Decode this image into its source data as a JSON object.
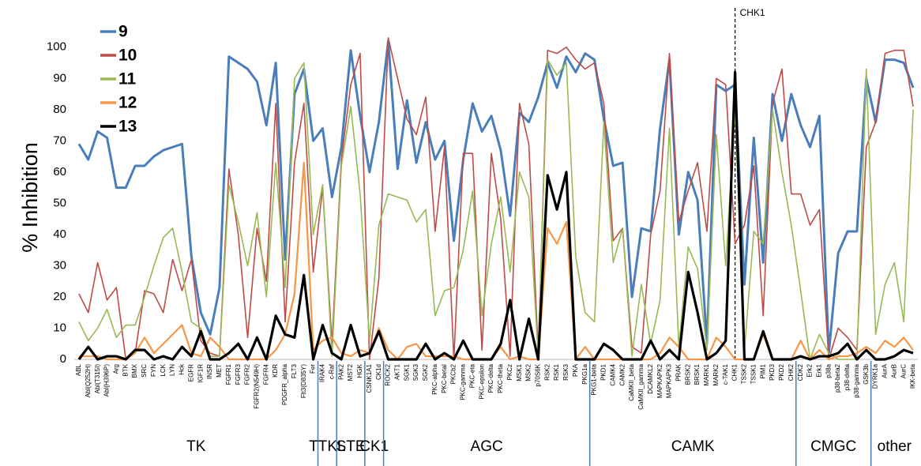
{
  "chart_data": {
    "type": "line",
    "y_label": "% Inhibition",
    "annotation": "CHK1",
    "group_labels": [
      "TK",
      "TTKL",
      "STE",
      "CK1",
      "AGC",
      "CAMK",
      "CMGC",
      "other"
    ],
    "ylim": [
      0,
      105
    ],
    "yticks": [
      0,
      10,
      20,
      30,
      40,
      50,
      60,
      70,
      80,
      90,
      100
    ],
    "grid": false,
    "legend": "upper left",
    "categories": [
      "ABL",
      "Abl(Q252H)",
      "Abl(T315I)",
      "Abl(H396P)",
      "Arg",
      "BTK",
      "BMX",
      "SRC",
      "FYN",
      "LCK",
      "LYN",
      "Hck",
      "EGFR",
      "IGF1R",
      "INSR",
      "MET",
      "FGFR1",
      "FGFR3",
      "FGFR2",
      "FGFR2(N549H)",
      "FGFR4",
      "KDR",
      "PDGFR_alpha",
      "FLT3",
      "Flt3(D835Y)",
      "Fer",
      "IRAK4",
      "c-Raf",
      "PAK2",
      "MST2",
      "HGK",
      "CSNK1A1",
      "CK1d",
      "ROCK2",
      "AKT1",
      "SGK1",
      "SGK3",
      "SGK2",
      "PKC-alpha",
      "PKC-betaI",
      "PKCb2",
      "PKC-gamma",
      "PKC-eta",
      "PKC-epsilon",
      "PKC-delta",
      "PKC-theta",
      "PKCz",
      "MSK1",
      "MSK2",
      "p70S6K",
      "RSK2",
      "RSK1",
      "RSK3",
      "PKA",
      "PKG1a",
      "PKG1-beta",
      "PKD1",
      "CAMK4",
      "CAMK2",
      "CaMKII_beta",
      "CaMKII_gamma",
      "DCAMKL2",
      "MAPKAPK2",
      "MAPKAPK3",
      "PRAK",
      "BRSK2",
      "BRSK1",
      "MARK1",
      "MARK2",
      "c-TAK1",
      "CHK1",
      "TSSK2",
      "TSSK1",
      "PIM1",
      "PKD3",
      "PKD2",
      "CHK2",
      "CDK2",
      "Erk2",
      "Erk1",
      "p38a",
      "p38-beta2",
      "p38-delta",
      "p38-gamma",
      "GSK3b",
      "DYRK1a",
      "AurA",
      "AurB",
      "AurC",
      "IKK-beta"
    ],
    "series": [
      {
        "name": "9",
        "color": "#4a7ebb",
        "values": [
          69,
          64,
          73,
          71,
          55,
          55,
          62,
          62,
          65,
          67,
          68,
          69,
          33,
          15,
          8,
          23,
          97,
          95,
          93,
          89,
          75,
          95,
          32,
          85,
          93,
          70,
          74,
          52,
          68,
          99,
          78,
          60,
          76,
          102,
          61,
          83,
          63,
          76,
          64,
          70,
          38,
          64,
          82,
          73,
          78,
          67,
          46,
          79,
          76,
          84,
          95,
          87,
          97,
          92,
          98,
          96,
          77,
          62,
          63,
          20,
          42,
          41,
          74,
          96,
          40,
          60,
          51,
          5,
          88,
          86,
          88,
          24,
          71,
          31,
          85,
          70,
          85,
          75,
          68,
          78,
          2,
          34,
          41,
          41,
          90,
          76,
          96,
          96,
          95,
          87
        ]
      },
      {
        "name": "10",
        "color": "#be4b48",
        "values": [
          21,
          15,
          31,
          19,
          23,
          0,
          2,
          22,
          21,
          15,
          32,
          22,
          32,
          6,
          2,
          1,
          61,
          40,
          7,
          42,
          25,
          82,
          12,
          63,
          82,
          28,
          55,
          5,
          64,
          88,
          98,
          0,
          26,
          103,
          90,
          77,
          72,
          84,
          41,
          68,
          0,
          66,
          66,
          3,
          66,
          45,
          1,
          82,
          69,
          2,
          99,
          98,
          100,
          96,
          93,
          95,
          82,
          38,
          42,
          4,
          2,
          40,
          54,
          98,
          44,
          54,
          63,
          41,
          90,
          88,
          37,
          43,
          62,
          14,
          82,
          93,
          53,
          53,
          43,
          48,
          0,
          10,
          7,
          3,
          68,
          76,
          98,
          99,
          99,
          81
        ]
      },
      {
        "name": "11",
        "color": "#98b954",
        "values": [
          12,
          6,
          10,
          16,
          7,
          11,
          11,
          20,
          30,
          39,
          42,
          28,
          12,
          10,
          1,
          1,
          56,
          44,
          30,
          47,
          20,
          63,
          23,
          90,
          95,
          40,
          56,
          1,
          62,
          81,
          53,
          6,
          43,
          53,
          52,
          51,
          44,
          48,
          14,
          22,
          23,
          35,
          54,
          14,
          37,
          52,
          28,
          60,
          52,
          1,
          96,
          91,
          95,
          33,
          15,
          12,
          76,
          31,
          42,
          1,
          24,
          5,
          19,
          74,
          4,
          36,
          29,
          3,
          72,
          30,
          80,
          3,
          41,
          37,
          80,
          60,
          43,
          22,
          0,
          8,
          2,
          0,
          0,
          0,
          93,
          8,
          24,
          31,
          12,
          80
        ]
      },
      {
        "name": "12",
        "color": "#f79646",
        "values": [
          1,
          1,
          1,
          0,
          0,
          0,
          2,
          7,
          2,
          5,
          8,
          11,
          2,
          1,
          7,
          4,
          0,
          0,
          0,
          0,
          0,
          3,
          8,
          21,
          63,
          3,
          6,
          7,
          2,
          1,
          3,
          2,
          10,
          3,
          0,
          4,
          5,
          1,
          1,
          1,
          1,
          0,
          0,
          0,
          0,
          4,
          0,
          1,
          0,
          0,
          42,
          37,
          44,
          0,
          4,
          0,
          0,
          0,
          0,
          0,
          0,
          0,
          2,
          7,
          4,
          0,
          0,
          0,
          7,
          4,
          0,
          0,
          0,
          8,
          0,
          0,
          0,
          6,
          0,
          3,
          0,
          1,
          1,
          2,
          4,
          2,
          6,
          4,
          7,
          3
        ]
      },
      {
        "name": "13",
        "color": "#000000",
        "values": [
          0,
          4,
          0,
          1,
          1,
          0,
          3,
          3,
          0,
          1,
          0,
          4,
          1,
          9,
          0,
          0,
          2,
          5,
          0,
          7,
          0,
          14,
          8,
          7,
          27,
          0,
          11,
          2,
          0,
          11,
          1,
          2,
          9,
          0,
          0,
          0,
          0,
          5,
          0,
          2,
          0,
          6,
          0,
          0,
          0,
          5,
          19,
          0,
          13,
          0,
          59,
          48,
          60,
          0,
          0,
          0,
          5,
          3,
          0,
          0,
          0,
          6,
          0,
          3,
          0,
          28,
          15,
          0,
          2,
          6,
          92,
          0,
          0,
          9,
          0,
          0,
          0,
          1,
          0,
          1,
          1,
          2,
          5,
          0,
          3,
          0,
          0,
          1,
          3,
          2
        ]
      }
    ]
  }
}
